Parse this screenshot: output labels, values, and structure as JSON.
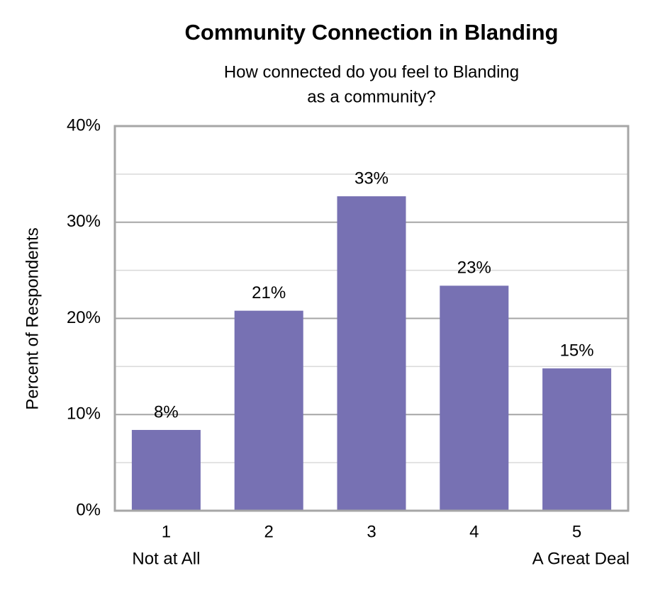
{
  "chart_data": {
    "type": "bar",
    "title": "Community Connection in Blanding",
    "subtitle": [
      "How connected do you feel to Blanding",
      "as a community?"
    ],
    "y_label": "Percent of Respondents",
    "categories": [
      "1",
      "2",
      "3",
      "4",
      "5"
    ],
    "category_notes": [
      "Not at All",
      null,
      null,
      null,
      "A Great Deal"
    ],
    "values": [
      8.4,
      20.8,
      32.7,
      23.4,
      14.8
    ],
    "value_labels": [
      "8%",
      "21%",
      "33%",
      "23%",
      "15%"
    ],
    "color": "#7771b3",
    "ylim": [
      0,
      40
    ],
    "yticks": [
      {
        "value": 0,
        "label": "0%"
      },
      {
        "value": 10,
        "label": "10%"
      },
      {
        "value": 20,
        "label": "20%"
      },
      {
        "value": 30,
        "label": "30%"
      },
      {
        "value": 40,
        "label": "40%"
      }
    ],
    "minor_yticks": [
      5,
      15,
      25,
      35
    ],
    "grid": true
  }
}
